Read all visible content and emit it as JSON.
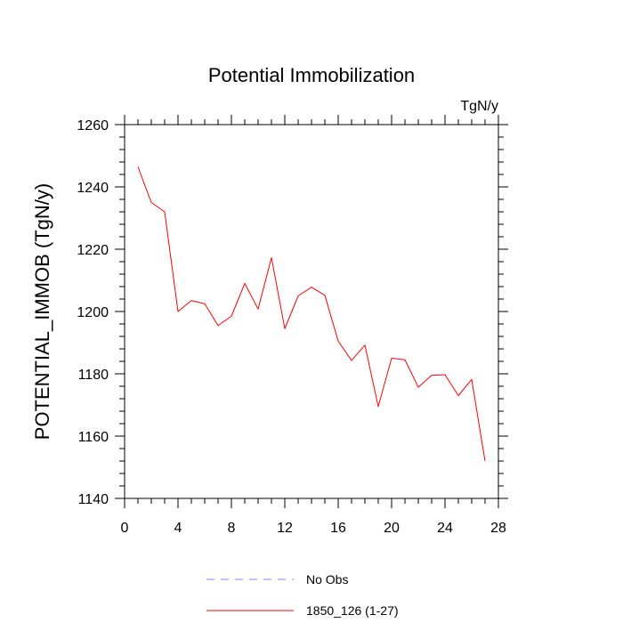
{
  "chart_data": {
    "type": "line",
    "title": "Potential Immobilization",
    "units_label": "TgN/y",
    "xlabel": "",
    "ylabel": "POTENTIAL_IMMOB  (TgN/y)",
    "xlim": [
      0,
      28
    ],
    "ylim": [
      1140,
      1260
    ],
    "x_ticks": [
      0,
      4,
      8,
      12,
      16,
      20,
      24,
      28
    ],
    "y_ticks": [
      1140,
      1160,
      1180,
      1200,
      1220,
      1240,
      1260
    ],
    "grid": false,
    "legend_position": "bottom",
    "series": [
      {
        "name": "1850_126 (1-27)",
        "color": "#ff0000",
        "style": "solid",
        "x": [
          1,
          2,
          3,
          4,
          5,
          6,
          7,
          8,
          9,
          10,
          11,
          12,
          13,
          14,
          15,
          16,
          17,
          18,
          19,
          20,
          21,
          22,
          23,
          24,
          25,
          26,
          27
        ],
        "values": [
          1246.5,
          1235,
          1232,
          1200,
          1203.5,
          1202.5,
          1195.5,
          1198.5,
          1209,
          1200.8,
          1217.3,
          1194.5,
          1205,
          1207.8,
          1205.2,
          1190.5,
          1184.3,
          1189.2,
          1169.5,
          1185,
          1184.5,
          1175.7,
          1179.5,
          1179.7,
          1173,
          1178.2,
          1152
        ]
      }
    ],
    "legend": [
      {
        "label": "No Obs",
        "color": "#8080ff",
        "style": "dashed"
      },
      {
        "label": "1850_126 (1-27)",
        "color": "#ff0000",
        "style": "solid"
      }
    ]
  }
}
